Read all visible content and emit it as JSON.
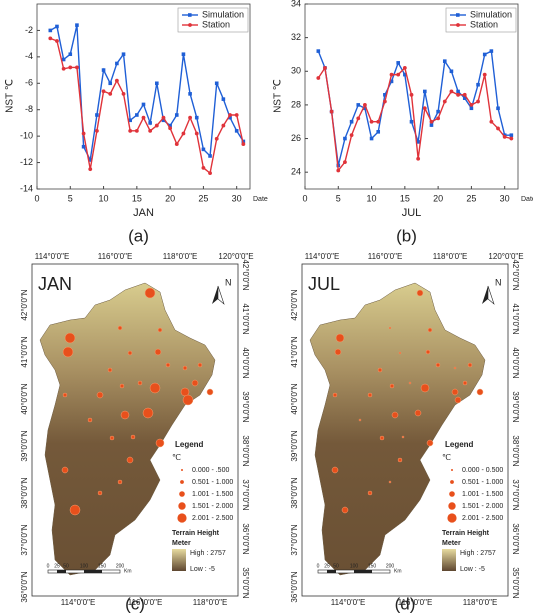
{
  "chart_data": [
    {
      "type": "line",
      "panel": "(a)",
      "x_label": "JAN",
      "y_label": "NST ℃",
      "x_end_label": "Date",
      "x": [
        2,
        3,
        4,
        5,
        6,
        7,
        8,
        9,
        10,
        11,
        12,
        13,
        14,
        15,
        16,
        17,
        18,
        19,
        20,
        21,
        22,
        23,
        24,
        25,
        26,
        27,
        28,
        29,
        30,
        31
      ],
      "series": [
        {
          "name": "Simulation",
          "color": "#1f5fd6",
          "values": [
            -2.0,
            -1.7,
            -4.2,
            -3.8,
            -1.6,
            -10.8,
            -11.8,
            -8.4,
            -5.0,
            -6.0,
            -4.5,
            -3.8,
            -8.8,
            -8.4,
            -7.6,
            -9.0,
            -6.0,
            -8.8,
            -9.2,
            -8.4,
            -3.8,
            -6.8,
            -8.6,
            -11.0,
            -11.5,
            -6.0,
            -7.2,
            -8.6,
            -9.6,
            -10.4
          ]
        },
        {
          "name": "Station",
          "color": "#e0333a",
          "values": [
            -2.6,
            -2.8,
            -4.9,
            -4.8,
            -4.8,
            -9.8,
            -12.5,
            -9.6,
            -6.6,
            -6.8,
            -5.8,
            -6.8,
            -9.6,
            -9.6,
            -8.6,
            -9.6,
            -9.2,
            -8.6,
            -9.4,
            -10.6,
            -9.8,
            -8.6,
            -9.8,
            -12.4,
            -12.8,
            -10.2,
            -9.2,
            -8.4,
            -8.4,
            -10.6
          ]
        }
      ],
      "xlim": [
        0,
        32
      ],
      "ylim": [
        -14,
        0
      ],
      "xticks": [
        0,
        5,
        10,
        15,
        20,
        25,
        30
      ],
      "yticks": [
        -14,
        -12,
        -10,
        -8,
        -6,
        -4,
        -2
      ],
      "legend": "upper right"
    },
    {
      "type": "line",
      "panel": "(b)",
      "x_label": "JUL",
      "y_label": "NST ℃",
      "x_end_label": "Date",
      "x": [
        2,
        3,
        4,
        5,
        6,
        7,
        8,
        9,
        10,
        11,
        12,
        13,
        14,
        15,
        16,
        17,
        18,
        19,
        20,
        21,
        22,
        23,
        24,
        25,
        26,
        27,
        28,
        29,
        30,
        31
      ],
      "series": [
        {
          "name": "Simulation",
          "color": "#1f5fd6",
          "values": [
            31.2,
            30.2,
            27.6,
            24.4,
            26.0,
            27.0,
            28.0,
            27.8,
            26.0,
            26.4,
            28.6,
            29.4,
            30.5,
            29.8,
            27.0,
            25.8,
            28.8,
            26.8,
            27.6,
            30.6,
            30.0,
            28.8,
            28.4,
            27.8,
            29.2,
            31.0,
            31.2,
            27.8,
            26.2,
            26.2
          ]
        },
        {
          "name": "Station",
          "color": "#e0333a",
          "values": [
            29.6,
            30.2,
            27.6,
            24.1,
            24.6,
            26.2,
            27.2,
            28.0,
            27.0,
            27.0,
            28.2,
            29.8,
            29.8,
            30.2,
            28.6,
            24.8,
            27.8,
            27.0,
            27.2,
            28.2,
            28.8,
            28.6,
            28.6,
            28.0,
            28.2,
            29.8,
            27.0,
            26.6,
            26.1,
            26.0
          ]
        }
      ],
      "xlim": [
        0,
        32
      ],
      "ylim": [
        23,
        34
      ],
      "xticks": [
        0,
        5,
        10,
        15,
        20,
        25,
        30
      ],
      "yticks": [
        24,
        26,
        28,
        30,
        32,
        34
      ],
      "legend": "upper right"
    }
  ],
  "maps": [
    {
      "panel": "(c)",
      "title": "JAN",
      "north": "N",
      "top_labels": [
        "114°0'0\"E",
        "116°0'0\"E",
        "118°0'0\"E",
        "120°0'0\"E"
      ],
      "bottom_labels": [
        "114°0'0\"E",
        "116°0'0\"E",
        "118°0'0\"E"
      ],
      "left_labels": [
        "42°0'0\"N",
        "41°0'0\"N",
        "40°0'0\"N",
        "39°0'0\"N",
        "38°0'0\"N",
        "37°0'0\"N",
        "36°0'0\"N"
      ],
      "right_labels": [
        "42°0'0\"N",
        "41°0'0\"N",
        "40°0'0\"N",
        "39°0'0\"N",
        "38°0'0\"N",
        "37°0'0\"N",
        "36°0'0\"N",
        "35°0'0\"N"
      ],
      "legend_title": "Legend",
      "unit": "℃",
      "classes": [
        "0.000 - .500",
        "0.501 - 1.000",
        "1.001 - 1.500",
        "1.501 - 2.000",
        "2.001 - 2.500"
      ],
      "terrain_title": "Terrain Height",
      "terrain_unit": "Meter",
      "high": "High : 2757",
      "low": "Low : -5",
      "scale_labels": [
        "0",
        "25",
        "50",
        "100",
        "150",
        "200"
      ],
      "scale_unit": "Km"
    },
    {
      "panel": "(d)",
      "title": "JUL",
      "north": "N",
      "top_labels": [
        "114°0'0\"E",
        "116°0'0\"E",
        "118°0'0\"E",
        "120°0'0\"E"
      ],
      "bottom_labels": [
        "114°0'0\"E",
        "116°0'0\"E",
        "118°0'0\"E"
      ],
      "left_labels": [
        "42°0'0\"N",
        "41°0'0\"N",
        "40°0'0\"N",
        "39°0'0\"N",
        "38°0'0\"N",
        "37°0'0\"N",
        "36°0'0\"N"
      ],
      "right_labels": [
        "42°0'0\"N",
        "41°0'0\"N",
        "40°0'0\"N",
        "39°0'0\"N",
        "38°0'0\"N",
        "37°0'0\"N",
        "36°0'0\"N",
        "35°0'0\"N"
      ],
      "legend_title": "Legend",
      "unit": "℃",
      "classes": [
        "0.000 - 0.500",
        "0.501 - 1.000",
        "1.001 - 1.500",
        "1.501 - 2.000",
        "2.001 - 2.500"
      ],
      "terrain_title": "Terrain Height",
      "terrain_unit": "Meter",
      "high": "High : 2757",
      "low": "Low : -5",
      "scale_labels": [
        "0",
        "25",
        "50",
        "100",
        "150",
        "200"
      ],
      "scale_unit": "Km"
    }
  ]
}
